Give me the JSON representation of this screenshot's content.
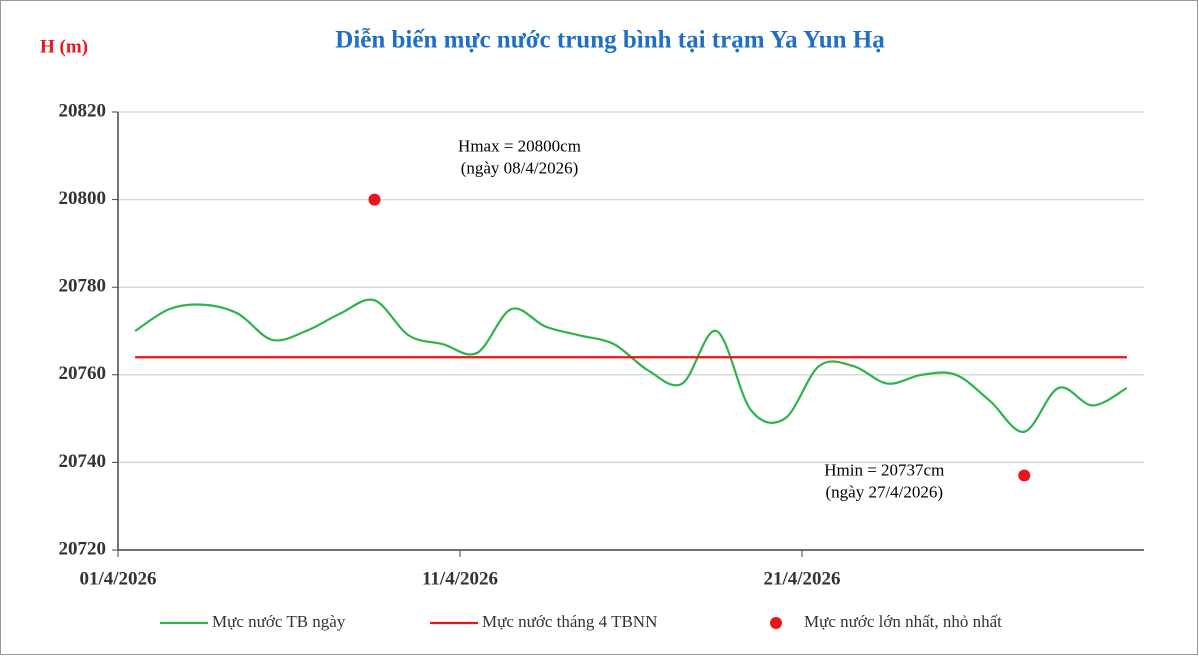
{
  "chart_data": {
    "type": "line",
    "title": "Diễn biến mực nước trung bình tại trạm Ya Yun Hạ",
    "y_label": "H (m)",
    "categories": [
      "01/4/2026",
      null,
      null,
      null,
      null,
      null,
      null,
      null,
      null,
      null,
      "11/4/2026",
      null,
      null,
      null,
      null,
      null,
      null,
      null,
      null,
      null,
      "21/4/2026",
      null,
      null,
      null,
      null,
      null,
      null,
      null,
      null,
      null
    ],
    "ylim": [
      20720,
      20820
    ],
    "yticks": [
      20720,
      20740,
      20760,
      20780,
      20800,
      20820
    ],
    "grid": true,
    "series": [
      {
        "name": "Mực nước TB ngày",
        "color": "#2db34a",
        "kind": "line",
        "smooth": true,
        "values": [
          20770,
          20775,
          20776,
          20774,
          20768,
          20770,
          20774,
          20777,
          20769,
          20767,
          20765,
          20775,
          20771,
          20769,
          20767,
          20761,
          20758,
          20770,
          20752,
          20750,
          20762,
          20762,
          20758,
          20760,
          20760,
          20754,
          20747,
          20757,
          20753,
          20757
        ]
      },
      {
        "name": "Mực nước tháng 4 TBNN",
        "color": "#e8161c",
        "kind": "line",
        "smooth": false,
        "values": [
          20764,
          20764,
          20764,
          20764,
          20764,
          20764,
          20764,
          20764,
          20764,
          20764,
          20764,
          20764,
          20764,
          20764,
          20764,
          20764,
          20764,
          20764,
          20764,
          20764,
          20764,
          20764,
          20764,
          20764,
          20764,
          20764,
          20764,
          20764,
          20764,
          20764
        ]
      },
      {
        "name": "Mực nước lớn nhất, nhỏ nhất",
        "color": "#e8161c",
        "kind": "scatter",
        "values": [
          null,
          null,
          null,
          null,
          null,
          null,
          null,
          20800,
          null,
          null,
          null,
          null,
          null,
          null,
          null,
          null,
          null,
          null,
          null,
          null,
          null,
          null,
          null,
          null,
          null,
          null,
          20737,
          null,
          null,
          null
        ]
      }
    ],
    "annotations": [
      {
        "lines": [
          "Hmax = 20800cm",
          "(ngày 08/4/2026)"
        ]
      },
      {
        "lines": [
          "Hmin = 20737cm",
          "(ngày 27/4/2026)"
        ]
      }
    ]
  }
}
